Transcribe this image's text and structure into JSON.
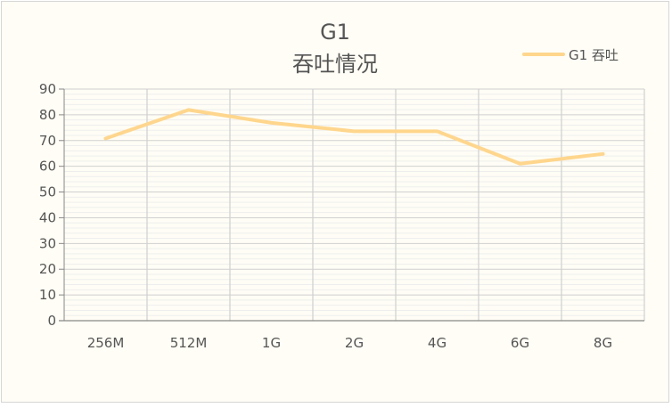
{
  "chart_data": {
    "type": "line",
    "title": "G1",
    "subtitle": "吞吐情况",
    "categories": [
      "256M",
      "512M",
      "1G",
      "2G",
      "4G",
      "6G",
      "8G"
    ],
    "series": [
      {
        "name": "G1 吞吐",
        "values": [
          70.8,
          81.9,
          76.9,
          73.6,
          73.6,
          61.0,
          64.8
        ],
        "color": "#ffd68c"
      }
    ],
    "ylim": [
      0,
      90
    ],
    "yticks": [
      "0",
      "10",
      "20",
      "30",
      "40",
      "50",
      "60",
      "70",
      "80",
      "90"
    ],
    "xlabel": "",
    "ylabel": "",
    "grid": true,
    "legend": "top-right"
  }
}
